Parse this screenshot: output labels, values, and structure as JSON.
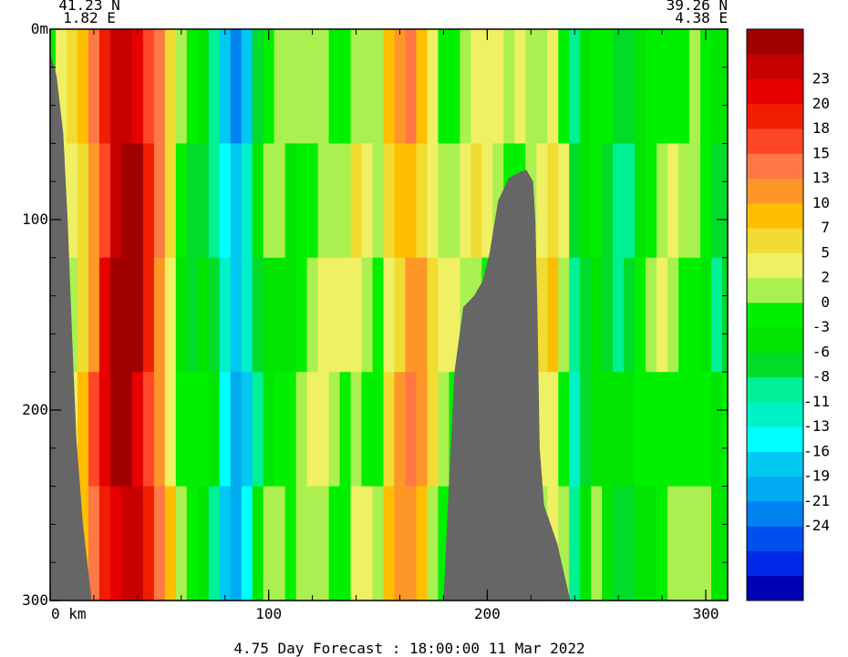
{
  "chart_data": {
    "type": "heatmap",
    "title": "4.75 Day Forecast : 18:00:00  11 Mar 2022",
    "start_point": {
      "lat": "41.23 N",
      "lon": "1.82 E"
    },
    "end_point": {
      "lat": "39.26 N",
      "lon": "4.38 E"
    },
    "x_axis": {
      "label": "km",
      "min": 0,
      "max": 310,
      "ticks": [
        0,
        100,
        200,
        300
      ],
      "tick_labels": [
        "0 km",
        "100",
        "200",
        "300"
      ]
    },
    "y_axis": {
      "unit": "m",
      "min": 0,
      "max": 300,
      "inverted": true,
      "ticks": [
        0,
        100,
        200,
        300
      ],
      "tick_labels": [
        "0m",
        "100",
        "200",
        "300"
      ]
    },
    "colorbar": {
      "labels": [
        "23",
        "20",
        "18",
        "15",
        "13",
        "10",
        "7",
        "5",
        "2",
        "0",
        "-3",
        "-6",
        "-8",
        "-11",
        "-13",
        "-16",
        "-19",
        "-21",
        "-24"
      ],
      "colors": [
        "#0000b4",
        "#0028e6",
        "#0050f0",
        "#0082f0",
        "#00aaf0",
        "#00c8f0",
        "#00ffff",
        "#00f0c8",
        "#00f096",
        "#00dc28",
        "#00e600",
        "#00f000",
        "#aaf050",
        "#f0f064",
        "#f0dc32",
        "#ffbe00",
        "#ff9628",
        "#ff7846",
        "#ff4628",
        "#f01e00",
        "#e60000",
        "#c80000",
        "#a00000"
      ]
    },
    "land_color": "#666666",
    "profile_columns": [
      {
        "km": 0,
        "v": -1
      },
      {
        "km": 5,
        "v": 3
      },
      {
        "km": 10,
        "v": 5
      },
      {
        "km": 15,
        "v": 8
      },
      {
        "km": 20,
        "v": 13
      },
      {
        "km": 25,
        "v": 19
      },
      {
        "km": 30,
        "v": 23
      },
      {
        "km": 35,
        "v": 25
      },
      {
        "km": 40,
        "v": 23
      },
      {
        "km": 45,
        "v": 17
      },
      {
        "km": 50,
        "v": 12
      },
      {
        "km": 55,
        "v": 6
      },
      {
        "km": 60,
        "v": 0
      },
      {
        "km": 65,
        "v": -2
      },
      {
        "km": 70,
        "v": -2
      },
      {
        "km": 75,
        "v": -5
      },
      {
        "km": 80,
        "v": -11
      },
      {
        "km": 85,
        "v": -15
      },
      {
        "km": 90,
        "v": -11
      },
      {
        "km": 95,
        "v": -4
      },
      {
        "km": 100,
        "v": 0
      },
      {
        "km": 105,
        "v": 1
      },
      {
        "km": 110,
        "v": -1
      },
      {
        "km": 115,
        "v": 1
      },
      {
        "km": 120,
        "v": 3
      },
      {
        "km": 125,
        "v": 4
      },
      {
        "km": 130,
        "v": 3
      },
      {
        "km": 135,
        "v": 2
      },
      {
        "km": 140,
        "v": 4
      },
      {
        "km": 145,
        "v": 3
      },
      {
        "km": 150,
        "v": 1
      },
      {
        "km": 155,
        "v": 6
      },
      {
        "km": 160,
        "v": 9
      },
      {
        "km": 165,
        "v": 12
      },
      {
        "km": 170,
        "v": 10
      },
      {
        "km": 175,
        "v": 5
      },
      {
        "km": 180,
        "v": 3
      },
      {
        "km": 185,
        "v": 2
      },
      {
        "km": 190,
        "v": 3
      },
      {
        "km": 195,
        "v": 4
      },
      {
        "km": 200,
        "v": 3
      },
      {
        "km": 205,
        "v": 2
      },
      {
        "km": 210,
        "v": 1
      },
      {
        "km": 215,
        "v": 3
      },
      {
        "km": 220,
        "v": 4
      },
      {
        "km": 225,
        "v": 5
      },
      {
        "km": 230,
        "v": 6
      },
      {
        "km": 235,
        "v": 2
      },
      {
        "km": 240,
        "v": -7
      },
      {
        "km": 245,
        "v": -3
      },
      {
        "km": 250,
        "v": -1
      },
      {
        "km": 255,
        "v": -3
      },
      {
        "km": 260,
        "v": -5
      },
      {
        "km": 265,
        "v": -4
      },
      {
        "km": 270,
        "v": -1
      },
      {
        "km": 275,
        "v": 1
      },
      {
        "km": 280,
        "v": 2
      },
      {
        "km": 285,
        "v": 2
      },
      {
        "km": 290,
        "v": 1
      },
      {
        "km": 295,
        "v": 1
      },
      {
        "km": 300,
        "v": -1
      },
      {
        "km": 305,
        "v": -4
      },
      {
        "km": 310,
        "v": -3
      }
    ],
    "bathymetry_left": [
      [
        0,
        12
      ],
      [
        3,
        25
      ],
      [
        6,
        55
      ],
      [
        8,
        100
      ],
      [
        10,
        160
      ],
      [
        12,
        215
      ],
      [
        15,
        260
      ],
      [
        19,
        300
      ]
    ],
    "bathymetry_seamount": [
      [
        180,
        300
      ],
      [
        182,
        250
      ],
      [
        185,
        180
      ],
      [
        189,
        146
      ],
      [
        194,
        140
      ],
      [
        198,
        132
      ],
      [
        201,
        118
      ],
      [
        205,
        90
      ],
      [
        210,
        78
      ],
      [
        215,
        75
      ],
      [
        218,
        74
      ],
      [
        221,
        80
      ],
      [
        222,
        100
      ],
      [
        223,
        150
      ],
      [
        224,
        220
      ],
      [
        226,
        250
      ],
      [
        232,
        270
      ],
      [
        238,
        300
      ]
    ]
  }
}
